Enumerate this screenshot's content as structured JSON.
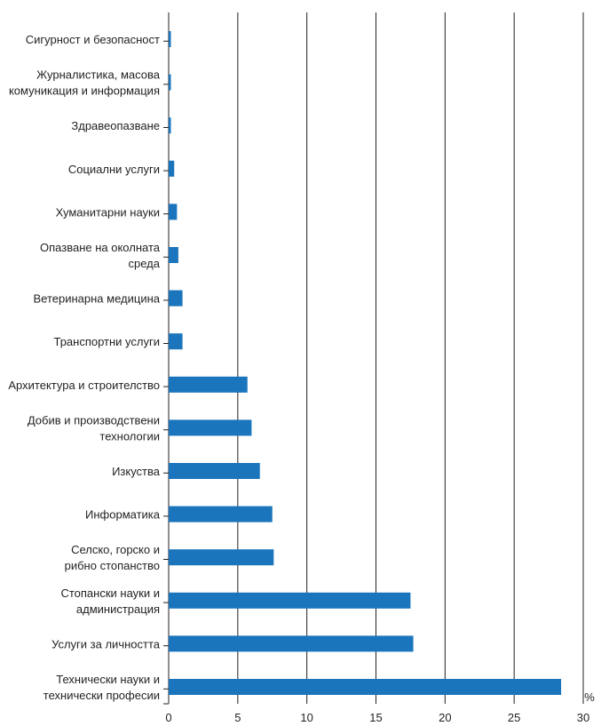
{
  "chart_data": {
    "type": "bar",
    "orientation": "horizontal",
    "categories": [
      "Сигурност и безопасност",
      "Журналистика, масова комуникация и информация",
      "Здравеопазване",
      "Социални услуги",
      "Хуманитарни науки",
      "Опазване на околната среда",
      "Ветеринарна медицина",
      "Транспортни услуги",
      "Архитектура и строителство",
      "Добив и производствени технологии",
      "Изкуства",
      "Информатика",
      "Селско, горско и рибно стопанство",
      "Стопански науки и администрация",
      "Услуги за личността",
      "Технически науки и технически професии"
    ],
    "category_lines": [
      [
        "Сигурност и безопасност"
      ],
      [
        "Журналистика, масова",
        "комуникация и информация"
      ],
      [
        "Здравеопазване"
      ],
      [
        "Социални услуги"
      ],
      [
        "Хуманитарни науки"
      ],
      [
        "Опазване на околната",
        "среда"
      ],
      [
        "Ветеринарна медицина"
      ],
      [
        "Транспортни услуги"
      ],
      [
        "Архитектура и строителство"
      ],
      [
        "Добив и производствени",
        "технологии"
      ],
      [
        "Изкуства"
      ],
      [
        "Информатика"
      ],
      [
        "Селско, горско и",
        "рибно стопанство"
      ],
      [
        "Стопански науки и",
        "администрация"
      ],
      [
        "Услуги за личността"
      ],
      [
        "Технически науки и",
        "технически професии"
      ]
    ],
    "values": [
      0.1,
      0.1,
      0.1,
      0.4,
      0.6,
      0.7,
      1.0,
      1.0,
      5.7,
      6.0,
      6.6,
      7.5,
      7.6,
      17.5,
      17.7,
      28.4
    ],
    "xlim": [
      0,
      30
    ],
    "xticks": [
      0,
      5,
      10,
      15,
      20,
      25,
      30
    ],
    "x_unit": "%",
    "grid": true,
    "bar_color": "#1a75bc"
  }
}
